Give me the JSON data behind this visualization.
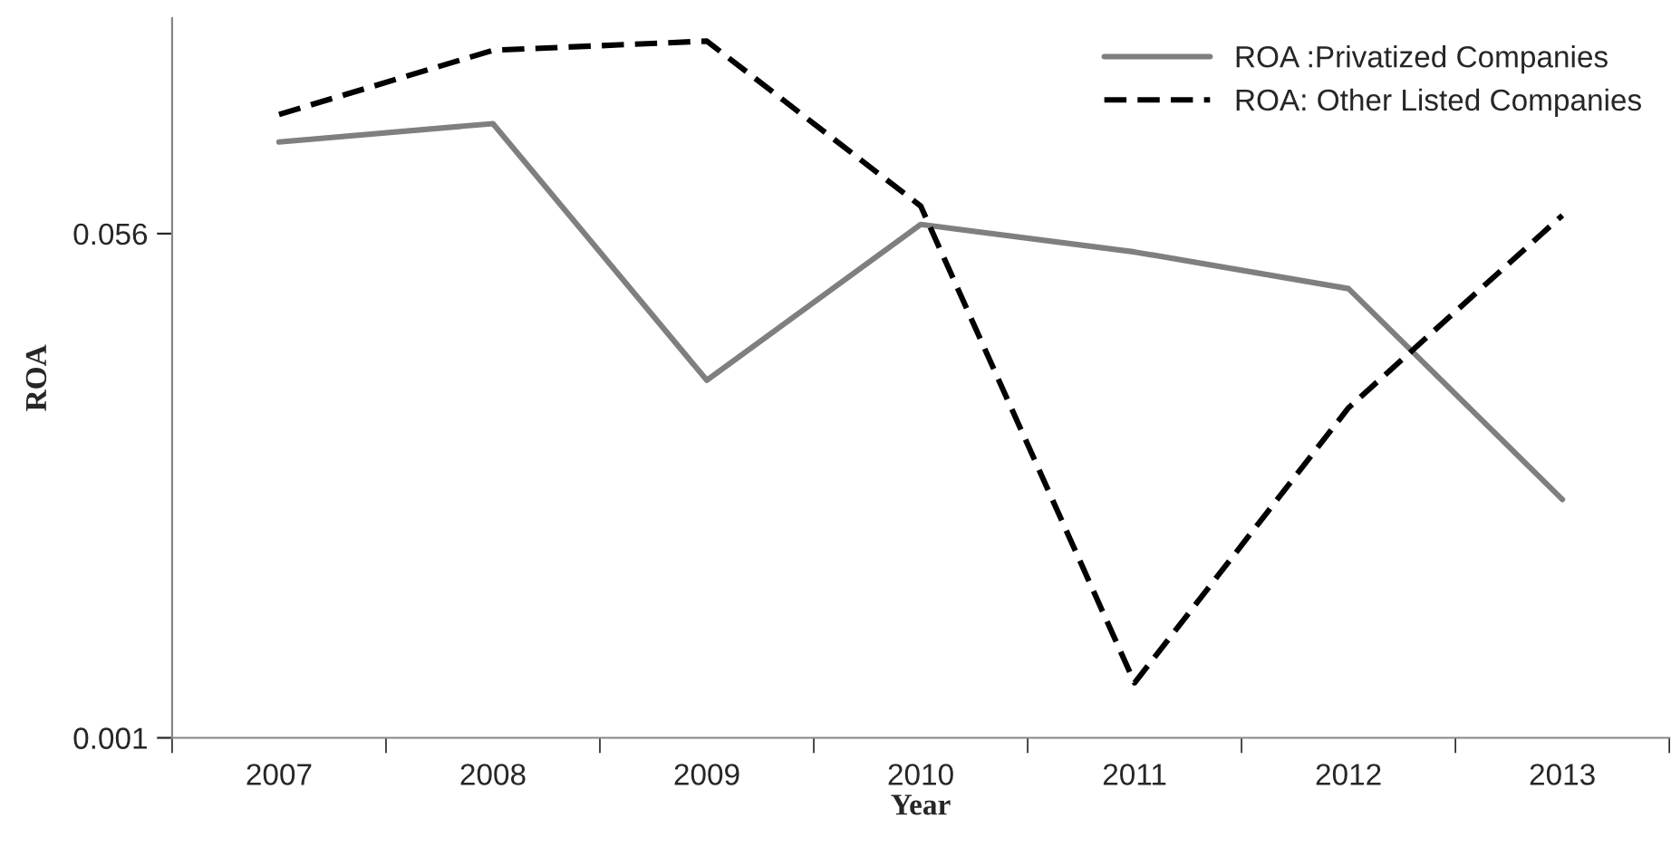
{
  "chart_data": {
    "type": "line",
    "xlabel": "Year",
    "ylabel": "ROA",
    "categories": [
      "2007",
      "2008",
      "2009",
      "2010",
      "2011",
      "2012",
      "2013"
    ],
    "series": [
      {
        "name": "ROA :Privatized Companies",
        "color": "#7f7f7f",
        "line_style": "solid",
        "values": [
          0.066,
          0.068,
          0.04,
          0.057,
          0.054,
          0.05,
          0.027
        ]
      },
      {
        "name": "ROA: Other Listed Companies",
        "color": "#000000",
        "line_style": "dashed",
        "values": [
          0.069,
          0.076,
          0.077,
          0.059,
          0.007,
          0.037,
          0.058
        ]
      }
    ],
    "ylim": [
      0.001,
      0.0795
    ],
    "yticks": [
      0.001,
      0.056
    ],
    "grid": false,
    "legend": "top right",
    "marker": "none"
  }
}
